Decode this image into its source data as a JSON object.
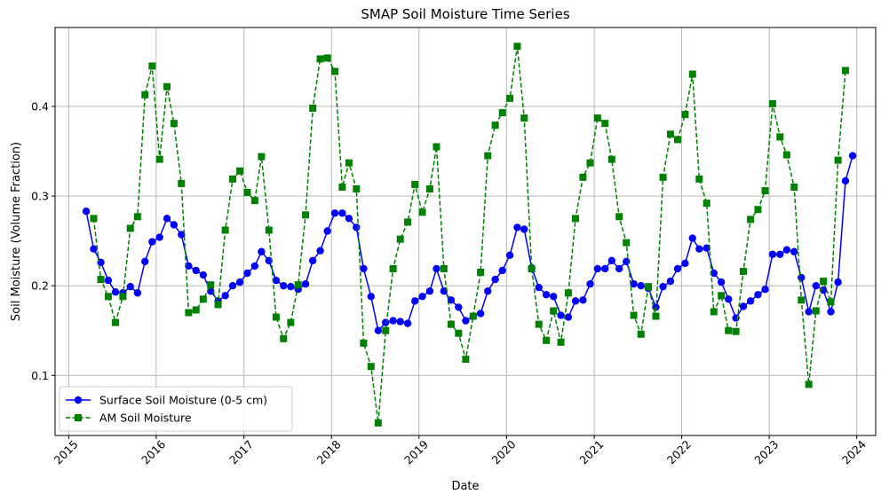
{
  "chart_data": {
    "type": "line",
    "title": "SMAP Soil Moisture Time Series",
    "xlabel": "Date",
    "ylabel": "Soil Moisture (Volume Fraction)",
    "x_ticks": [
      "2015",
      "2016",
      "2017",
      "2018",
      "2019",
      "2020",
      "2021",
      "2022",
      "2023",
      "2024"
    ],
    "y_ticks": [
      0.1,
      0.2,
      0.3,
      0.4
    ],
    "xlim": [
      "2014-11-05",
      "2024-03-20"
    ],
    "ylim": [
      0.033,
      0.488
    ],
    "grid": true,
    "legend_position": "lower-left",
    "x": [
      "2015-03",
      "2015-04",
      "2015-05",
      "2015-06",
      "2015-07",
      "2015-08",
      "2015-09",
      "2015-10",
      "2015-11",
      "2015-12",
      "2016-01",
      "2016-02",
      "2016-03",
      "2016-04",
      "2016-05",
      "2016-06",
      "2016-07",
      "2016-08",
      "2016-09",
      "2016-10",
      "2016-11",
      "2016-12",
      "2017-01",
      "2017-02",
      "2017-03",
      "2017-04",
      "2017-05",
      "2017-06",
      "2017-07",
      "2017-08",
      "2017-09",
      "2017-10",
      "2017-11",
      "2017-12",
      "2018-01",
      "2018-02",
      "2018-03",
      "2018-04",
      "2018-05",
      "2018-06",
      "2018-07",
      "2018-08",
      "2018-09",
      "2018-10",
      "2018-11",
      "2018-12",
      "2019-01",
      "2019-02",
      "2019-03",
      "2019-04",
      "2019-05",
      "2019-06",
      "2019-07",
      "2019-08",
      "2019-09",
      "2019-10",
      "2019-11",
      "2019-12",
      "2020-01",
      "2020-02",
      "2020-03",
      "2020-04",
      "2020-05",
      "2020-06",
      "2020-07",
      "2020-08",
      "2020-09",
      "2020-10",
      "2020-11",
      "2020-12",
      "2021-01",
      "2021-02",
      "2021-03",
      "2021-04",
      "2021-05",
      "2021-06",
      "2021-07",
      "2021-08",
      "2021-09",
      "2021-10",
      "2021-11",
      "2021-12",
      "2022-01",
      "2022-02",
      "2022-03",
      "2022-04",
      "2022-05",
      "2022-06",
      "2022-07",
      "2022-08",
      "2022-09",
      "2022-10",
      "2022-11",
      "2022-12",
      "2023-01",
      "2023-02",
      "2023-03",
      "2023-04",
      "2023-05",
      "2023-06",
      "2023-07",
      "2023-08",
      "2023-09",
      "2023-10",
      "2023-11",
      "2023-12"
    ],
    "series": [
      {
        "name": "Surface Soil Moisture (0-5 cm)",
        "color": "#0000ff",
        "marker": "circle",
        "linestyle": "solid",
        "values": [
          0.283,
          0.241,
          0.226,
          0.206,
          0.193,
          0.192,
          0.199,
          0.192,
          0.227,
          0.249,
          0.254,
          0.275,
          0.268,
          0.257,
          0.222,
          0.217,
          0.212,
          0.194,
          0.183,
          0.189,
          0.2,
          0.204,
          0.214,
          0.222,
          0.238,
          0.228,
          0.206,
          0.2,
          0.199,
          0.196,
          0.202,
          0.228,
          0.239,
          0.261,
          0.281,
          0.281,
          0.275,
          0.265,
          0.219,
          0.188,
          0.15,
          0.159,
          0.161,
          0.16,
          0.158,
          0.183,
          0.188,
          0.194,
          0.219,
          0.194,
          0.184,
          0.176,
          0.161,
          0.166,
          0.169,
          0.194,
          0.207,
          0.217,
          0.234,
          0.265,
          0.263,
          0.22,
          0.198,
          0.19,
          0.188,
          0.167,
          0.165,
          0.183,
          0.184,
          0.202,
          0.219,
          0.219,
          0.228,
          0.219,
          0.227,
          0.202,
          0.2,
          0.197,
          0.176,
          0.199,
          0.205,
          0.219,
          0.225,
          0.253,
          0.241,
          0.242,
          0.214,
          0.204,
          0.185,
          0.164,
          0.177,
          0.183,
          0.19,
          0.196,
          0.235,
          0.235,
          0.24,
          0.238,
          0.209,
          0.171,
          0.2,
          0.195,
          0.171,
          0.204,
          0.317,
          0.345
        ]
      },
      {
        "name": "AM Soil Moisture",
        "color": "#008000",
        "marker": "square",
        "linestyle": "dashed",
        "values": [
          null,
          0.275,
          0.207,
          0.188,
          0.159,
          0.188,
          0.264,
          0.277,
          0.413,
          0.445,
          0.341,
          0.422,
          0.381,
          0.314,
          0.17,
          0.173,
          0.185,
          0.201,
          0.179,
          0.262,
          0.319,
          0.328,
          0.304,
          0.295,
          0.344,
          0.262,
          0.165,
          0.141,
          0.159,
          0.201,
          0.279,
          0.398,
          0.453,
          0.454,
          0.439,
          0.31,
          0.337,
          0.308,
          0.136,
          0.11,
          0.047,
          0.15,
          0.219,
          0.252,
          0.271,
          0.313,
          0.282,
          0.308,
          0.355,
          0.219,
          0.157,
          0.147,
          0.118,
          0.166,
          0.215,
          0.345,
          0.379,
          0.393,
          0.409,
          0.467,
          0.387,
          0.219,
          0.157,
          0.139,
          0.172,
          0.137,
          0.192,
          0.275,
          0.321,
          0.337,
          0.387,
          0.381,
          0.341,
          0.277,
          0.248,
          0.167,
          0.146,
          0.199,
          0.166,
          0.321,
          0.369,
          0.363,
          0.391,
          0.436,
          0.319,
          0.292,
          0.171,
          0.189,
          0.15,
          0.149,
          0.216,
          0.274,
          0.285,
          0.306,
          0.403,
          0.366,
          0.346,
          0.31,
          0.184,
          0.09,
          0.172,
          0.205,
          0.182,
          0.34,
          0.44,
          null
        ]
      }
    ]
  }
}
